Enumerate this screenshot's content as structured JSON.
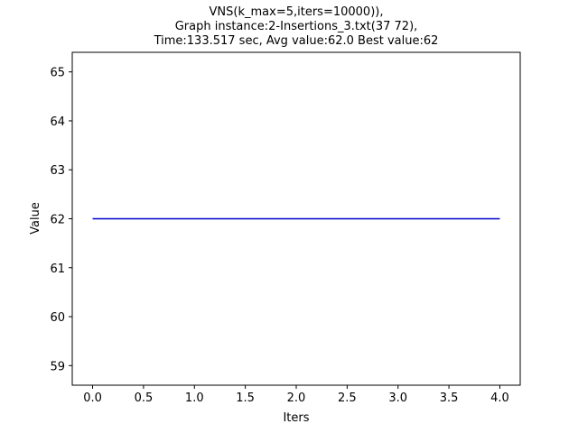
{
  "chart_data": {
    "type": "line",
    "title_lines": [
      "VNS(k_max=5,iters=10000)),",
      "Graph instance:2-Insertions_3.txt(37 72),",
      "Time:133.517 sec, Avg value:62.0 Best value:62"
    ],
    "xlabel": "Iters",
    "ylabel": "Value",
    "x_ticks": [
      "0.0",
      "0.5",
      "1.0",
      "1.5",
      "2.0",
      "2.5",
      "3.0",
      "3.5",
      "4.0"
    ],
    "y_ticks": [
      "59",
      "60",
      "61",
      "62",
      "63",
      "64",
      "65"
    ],
    "xlim": [
      -0.2,
      4.2
    ],
    "ylim": [
      58.6,
      65.4
    ],
    "grid": false,
    "series": [
      {
        "color": "#0000cc",
        "x": [
          0,
          1,
          2,
          3,
          4
        ],
        "y": [
          62,
          62,
          62,
          62,
          62
        ]
      }
    ]
  }
}
